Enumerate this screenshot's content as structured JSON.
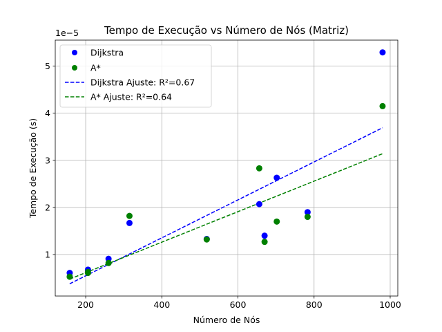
{
  "chart_data": {
    "type": "scatter",
    "title": "Tempo de Execução vs Número de Nós (Matriz)",
    "xlabel": "Número de Nós",
    "ylabel": "Tempo de Execução (s)",
    "y_offset_label": "1e−5",
    "xlim": [
      120,
      1020
    ],
    "ylim": [
      1.2e-06,
      5.55e-05
    ],
    "xticks": [
      200,
      400,
      600,
      800,
      1000
    ],
    "xtick_labels": [
      "200",
      "400",
      "600",
      "800",
      "1000"
    ],
    "yticks": [
      1e-05,
      2e-05,
      3e-05,
      4e-05,
      5e-05
    ],
    "ytick_labels": [
      "1",
      "2",
      "3",
      "4",
      "5"
    ],
    "grid": true,
    "legend_position": "top-left",
    "series": [
      {
        "name": "Dijkstra",
        "kind": "scatter",
        "color": "#0000ff",
        "x": [
          158,
          206,
          206,
          260,
          315,
          518,
          656,
          670,
          702,
          783,
          980
        ],
        "y": [
          6.1e-06,
          6.8e-06,
          6.6e-06,
          9.1e-06,
          1.67e-05,
          1.33e-05,
          2.07e-05,
          1.4e-05,
          2.63e-05,
          1.9e-05,
          5.29e-05
        ]
      },
      {
        "name": "A*",
        "kind": "scatter",
        "color": "#008000",
        "x": [
          158,
          206,
          206,
          260,
          315,
          518,
          656,
          670,
          702,
          783,
          980
        ],
        "y": [
          5.3e-06,
          6.3e-06,
          6.1e-06,
          8.2e-06,
          1.82e-05,
          1.32e-05,
          2.83e-05,
          1.27e-05,
          1.7e-05,
          1.8e-05,
          4.15e-05
        ]
      },
      {
        "name": "Dijkstra Ajuste: R²=0.67",
        "kind": "fit-line",
        "color": "#0000ff",
        "x": [
          158,
          980
        ],
        "y": [
          3.8e-06,
          3.69e-05
        ]
      },
      {
        "name": "A* Ajuste: R²=0.64",
        "kind": "fit-line",
        "color": "#008000",
        "x": [
          158,
          980
        ],
        "y": [
          4.8e-06,
          3.14e-05
        ]
      }
    ]
  }
}
